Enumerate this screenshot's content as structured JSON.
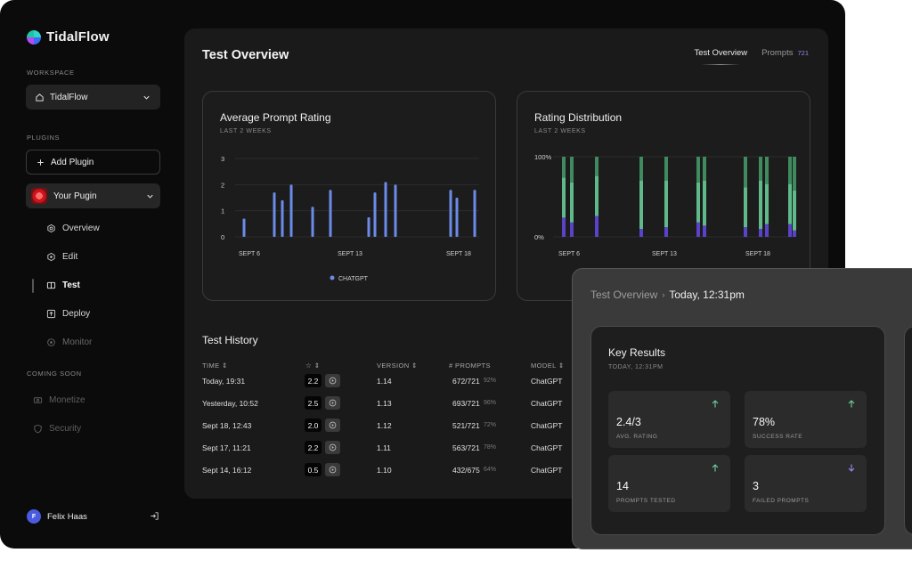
{
  "app": {
    "name": "TidalFlow"
  },
  "sidebar": {
    "workspace_label": "WORKSPACE",
    "workspace_value": "TidalFlow",
    "plugins_label": "PLUGINS",
    "add_plugin": "Add Plugin",
    "plugin_name": "Your Pugin",
    "nav": [
      {
        "label": "Overview",
        "icon": "settings-icon"
      },
      {
        "label": "Edit",
        "icon": "gear-icon"
      },
      {
        "label": "Test",
        "icon": "book-icon"
      },
      {
        "label": "Deploy",
        "icon": "upload-icon"
      },
      {
        "label": "Monitor",
        "icon": "monitor-icon"
      }
    ],
    "coming_soon_label": "COMING SOON",
    "coming_soon": [
      {
        "label": "Monetize",
        "icon": "money-icon"
      },
      {
        "label": "Security",
        "icon": "shield-icon"
      }
    ],
    "user": {
      "name": "Felix Haas",
      "initial": "F"
    }
  },
  "main": {
    "title": "Test Overview",
    "tabs": [
      {
        "label": "Test Overview",
        "active": true
      },
      {
        "label": "Prompts",
        "count": "721"
      }
    ]
  },
  "chart_data": [
    {
      "type": "bar",
      "title": "Average Prompt Rating",
      "subtitle": "LAST 2 WEEKS",
      "ylim": [
        0,
        3
      ],
      "yticks": [
        "0",
        "1",
        "2",
        "3"
      ],
      "xticks": [
        "SEPT 6",
        "SEPT 13",
        "SEPT 18"
      ],
      "series": [
        {
          "name": "CHATGPT",
          "color": "#6b8be8",
          "values": [
            0.7,
            1.7,
            1.4,
            2.0,
            1.15,
            1.8,
            0.75,
            1.7,
            2.1,
            2.0,
            1.8,
            1.5,
            1.8
          ]
        }
      ],
      "legend": "bottom"
    },
    {
      "type": "bar",
      "title": "Rating Distribution",
      "subtitle": "LAST 2 WEEKS",
      "stacked": true,
      "yticks": [
        "0%",
        "100%"
      ],
      "xticks": [
        "SEPT 6",
        "SEPT 13",
        "SEPT 18"
      ],
      "colors": [
        "#5b43c9",
        "#5fb98a",
        "#3f8a5e"
      ],
      "bars": [
        [
          0.24,
          0.5,
          0.26
        ],
        [
          0.18,
          0.5,
          0.32
        ],
        [
          0.26,
          0.5,
          0.24
        ],
        [
          0.1,
          0.6,
          0.3
        ],
        [
          0.12,
          0.58,
          0.3
        ],
        [
          0.18,
          0.5,
          0.32
        ],
        [
          0.14,
          0.56,
          0.3
        ],
        [
          0.12,
          0.5,
          0.38
        ],
        [
          0.1,
          0.6,
          0.3
        ],
        [
          0.16,
          0.5,
          0.34
        ],
        [
          0.16,
          0.5,
          0.34
        ],
        [
          0.08,
          0.5,
          0.42
        ]
      ]
    }
  ],
  "history": {
    "title": "Test History",
    "columns": [
      "TIME",
      "VERSION",
      "# PROMPTS",
      "MODEL"
    ],
    "rows": [
      {
        "time": "Today, 19:31",
        "score": "2.2",
        "version": "1.14",
        "prompts": "672/721",
        "pct": "92%",
        "model": "ChatGPT"
      },
      {
        "time": "Yesterday, 10:52",
        "score": "2.5",
        "version": "1.13",
        "prompts": "693/721",
        "pct": "96%",
        "model": "ChatGPT"
      },
      {
        "time": "Sept 18, 12:43",
        "score": "2.0",
        "version": "1.12",
        "prompts": "521/721",
        "pct": "72%",
        "model": "ChatGPT"
      },
      {
        "time": "Sept 17, 11:21",
        "score": "2.2",
        "version": "1.11",
        "prompts": "563/721",
        "pct": "78%",
        "model": "ChatGPT"
      },
      {
        "time": "Sept 14, 16:12",
        "score": "0.5",
        "version": "1.10",
        "prompts": "432/675",
        "pct": "64%",
        "model": "ChatGPT"
      }
    ]
  },
  "overlay": {
    "crumb_parent": "Test Overview",
    "crumb_current": "Today, 12:31pm",
    "card_title": "Key Results",
    "card_sub": "TODAY, 12:31PM",
    "stats": [
      {
        "value": "2.4/3",
        "label": "AVG. RATING",
        "trend": "up"
      },
      {
        "value": "78%",
        "label": "SUCCESS RATE",
        "trend": "up"
      },
      {
        "value": "14",
        "label": "PROMPTS TESTED",
        "trend": "up"
      },
      {
        "value": "3",
        "label": "FAILED PROMPTS",
        "trend": "down"
      }
    ]
  }
}
